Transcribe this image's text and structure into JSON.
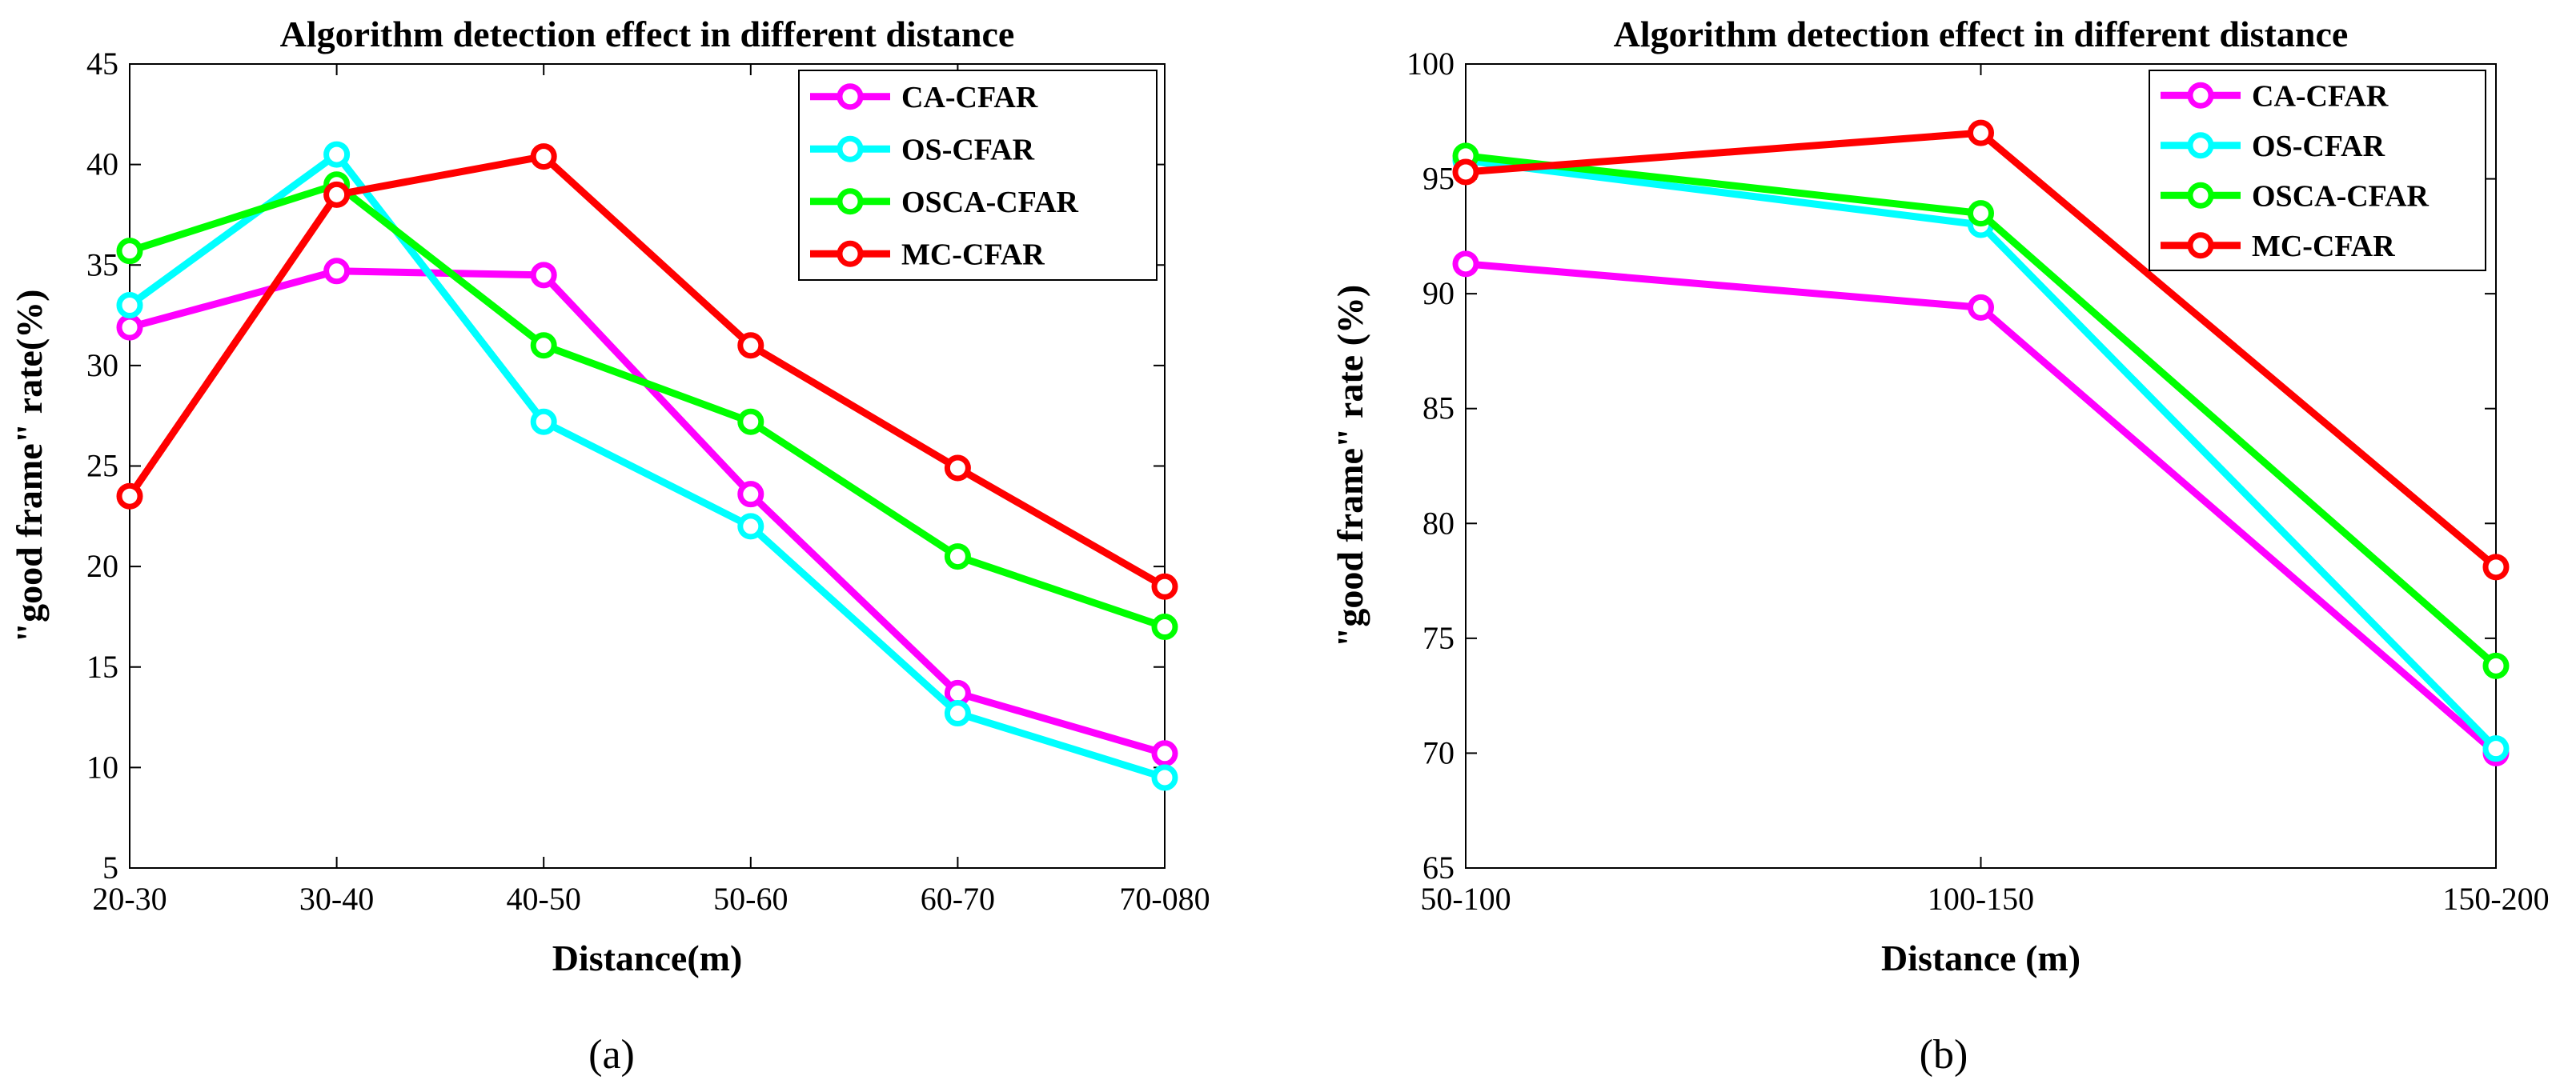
{
  "chart_data": [
    {
      "type": "line",
      "id": "a",
      "title": "Algorithm detection effect in different distance",
      "xlabel": "Distance(m)",
      "ylabel": "\"good frame\" rate(%)",
      "caption": "(a)",
      "categories": [
        "20-30",
        "30-40",
        "40-50",
        "50-60",
        "60-70",
        "70-080"
      ],
      "ylim": [
        5,
        45
      ],
      "yticks": [
        5,
        10,
        15,
        20,
        25,
        30,
        35,
        40,
        45
      ],
      "legend_position": "top-right",
      "series": [
        {
          "name": "CA-CFAR",
          "color": "#ff00ff",
          "values": [
            31.9,
            34.7,
            34.5,
            23.6,
            13.7,
            10.7
          ]
        },
        {
          "name": "OS-CFAR",
          "color": "#00ffff",
          "values": [
            33.0,
            40.5,
            27.2,
            22.0,
            12.7,
            9.5
          ]
        },
        {
          "name": "OSCA-CFAR",
          "color": "#00ff00",
          "values": [
            35.7,
            39.0,
            31.0,
            27.2,
            20.5,
            17.0
          ]
        },
        {
          "name": "MC-CFAR",
          "color": "#ff0000",
          "values": [
            23.5,
            38.5,
            40.4,
            31.0,
            24.9,
            19.0
          ]
        }
      ]
    },
    {
      "type": "line",
      "id": "b",
      "title": "Algorithm detection effect in different distance",
      "xlabel": "Distance (m)",
      "ylabel": "\"good frame\" rate (%)",
      "caption": "(b)",
      "categories": [
        "50-100",
        "100-150",
        "150-200"
      ],
      "ylim": [
        65,
        100
      ],
      "yticks": [
        65,
        70,
        75,
        80,
        85,
        90,
        95,
        100
      ],
      "legend_position": "top-right",
      "series": [
        {
          "name": "CA-CFAR",
          "color": "#ff00ff",
          "values": [
            91.3,
            89.4,
            70.0
          ]
        },
        {
          "name": "OS-CFAR",
          "color": "#00ffff",
          "values": [
            95.8,
            93.0,
            70.2
          ]
        },
        {
          "name": "OSCA-CFAR",
          "color": "#00ff00",
          "values": [
            96.0,
            93.5,
            73.8
          ]
        },
        {
          "name": "MC-CFAR",
          "color": "#ff0000",
          "values": [
            95.3,
            97.0,
            78.1
          ]
        }
      ]
    }
  ]
}
